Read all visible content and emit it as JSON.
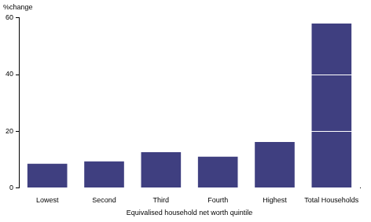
{
  "chart_data": {
    "type": "bar",
    "ylabel": "%change",
    "xlabel": "Equivalised household net worth quintile",
    "categories": [
      "Lowest",
      "Second",
      "Third",
      "Fourth",
      "Highest",
      "Total Households"
    ],
    "values": [
      8.5,
      9.3,
      12.6,
      11.0,
      16.2,
      58.0
    ],
    "color": "#3f3f80",
    "ylim": [
      0,
      60
    ],
    "yticks": [
      0,
      20,
      40,
      60
    ],
    "grid": true
  }
}
